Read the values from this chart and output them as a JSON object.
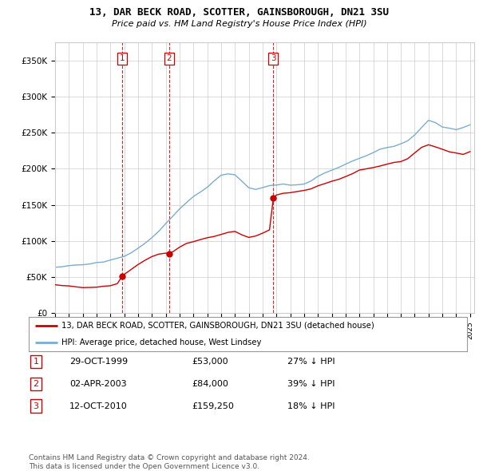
{
  "title": "13, DAR BECK ROAD, SCOTTER, GAINSBOROUGH, DN21 3SU",
  "subtitle": "Price paid vs. HM Land Registry's House Price Index (HPI)",
  "ylim": [
    0,
    375000
  ],
  "yticks": [
    0,
    50000,
    100000,
    150000,
    200000,
    250000,
    300000,
    350000
  ],
  "ytick_labels": [
    "£0",
    "£50K",
    "£100K",
    "£150K",
    "£200K",
    "£250K",
    "£300K",
    "£350K"
  ],
  "xlim_start": 1995,
  "xlim_end": 2025.3,
  "sales": [
    {
      "date_num": 1999.83,
      "price": 53000,
      "label": "1"
    },
    {
      "date_num": 2003.25,
      "price": 84000,
      "label": "2"
    },
    {
      "date_num": 2010.78,
      "price": 159250,
      "label": "3"
    }
  ],
  "vlines": [
    1999.83,
    2003.25,
    2010.78
  ],
  "legend_line1": "13, DAR BECK ROAD, SCOTTER, GAINSBOROUGH, DN21 3SU (detached house)",
  "legend_line2": "HPI: Average price, detached house, West Lindsey",
  "table_data": [
    [
      "1",
      "29-OCT-1999",
      "£53,000",
      "27% ↓ HPI"
    ],
    [
      "2",
      "02-APR-2003",
      "£84,000",
      "39% ↓ HPI"
    ],
    [
      "3",
      "12-OCT-2010",
      "£159,250",
      "18% ↓ HPI"
    ]
  ],
  "footer": "Contains HM Land Registry data © Crown copyright and database right 2024.\nThis data is licensed under the Open Government Licence v3.0.",
  "line_color_red": "#cc0000",
  "line_color_blue": "#7aadcf",
  "background_color": "#ffffff",
  "grid_color": "#cccccc",
  "hpi_base": [
    1995,
    1995.5,
    1996,
    1996.5,
    1997,
    1997.5,
    1998,
    1998.5,
    1999,
    1999.5,
    2000,
    2000.5,
    2001,
    2001.5,
    2002,
    2002.5,
    2003,
    2003.5,
    2004,
    2004.5,
    2005,
    2005.5,
    2006,
    2006.5,
    2007,
    2007.5,
    2008,
    2008.5,
    2009,
    2009.5,
    2010,
    2010.5,
    2011,
    2011.5,
    2012,
    2012.5,
    2013,
    2013.5,
    2014,
    2014.5,
    2015,
    2015.5,
    2016,
    2016.5,
    2017,
    2017.5,
    2018,
    2018.5,
    2019,
    2019.5,
    2020,
    2020.5,
    2021,
    2021.5,
    2022,
    2022.5,
    2023,
    2023.5,
    2024,
    2024.5,
    2025
  ],
  "hpi_vals": [
    63000,
    64000,
    65500,
    66000,
    67000,
    68000,
    70000,
    72000,
    74000,
    76000,
    79000,
    84000,
    90000,
    97000,
    105000,
    115000,
    125000,
    135000,
    145000,
    155000,
    162000,
    168000,
    175000,
    182000,
    190000,
    193000,
    192000,
    185000,
    175000,
    173000,
    176000,
    178000,
    180000,
    181000,
    181000,
    182000,
    184000,
    187000,
    192000,
    197000,
    200000,
    204000,
    208000,
    213000,
    218000,
    223000,
    227000,
    230000,
    232000,
    234000,
    236000,
    240000,
    248000,
    258000,
    268000,
    265000,
    260000,
    258000,
    256000,
    258000,
    262000
  ],
  "prop_base": [
    1995,
    1995.5,
    1996,
    1996.5,
    1997,
    1997.5,
    1998,
    1998.5,
    1999,
    1999.5,
    1999.83,
    2000,
    2000.5,
    2001,
    2001.5,
    2002,
    2002.5,
    2003,
    2003.25,
    2003.5,
    2004,
    2004.5,
    2005,
    2005.5,
    2006,
    2006.5,
    2007,
    2007.5,
    2008,
    2008.5,
    2009,
    2009.5,
    2010,
    2010.5,
    2010.78,
    2011,
    2011.5,
    2012,
    2012.5,
    2013,
    2013.5,
    2014,
    2014.5,
    2015,
    2015.5,
    2016,
    2016.5,
    2017,
    2017.5,
    2018,
    2018.5,
    2019,
    2019.5,
    2020,
    2020.5,
    2021,
    2021.5,
    2022,
    2022.5,
    2023,
    2023.5,
    2024,
    2024.5,
    2025
  ],
  "prop_vals": [
    40000,
    39000,
    37500,
    36500,
    36000,
    37000,
    38000,
    39500,
    41000,
    43000,
    53000,
    56000,
    62000,
    68000,
    74000,
    79000,
    82000,
    83500,
    84000,
    86000,
    92000,
    97000,
    100000,
    103000,
    106000,
    108000,
    110000,
    112000,
    113000,
    108000,
    104000,
    106000,
    110000,
    115000,
    159250,
    162000,
    164000,
    165000,
    167000,
    169000,
    171000,
    175000,
    179000,
    182000,
    185000,
    188000,
    192000,
    196000,
    198000,
    200000,
    202000,
    204000,
    206000,
    208000,
    212000,
    220000,
    228000,
    232000,
    228000,
    225000,
    222000,
    220000,
    218000,
    222000
  ]
}
